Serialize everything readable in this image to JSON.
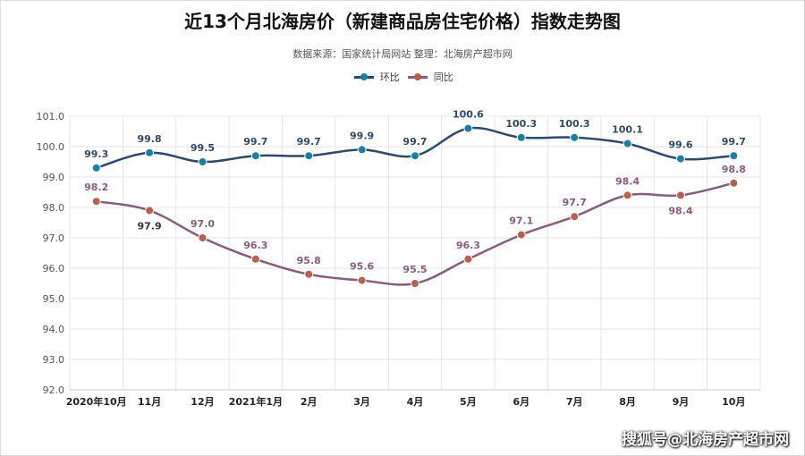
{
  "title": "近13个月北海房价（新建商品房住宅价格）指数走势图",
  "subtitle": "数据来源：国家统计局网站   整理：北海房产超市网",
  "footer": "搜狐号@北海房产超市网",
  "chart_data": {
    "type": "line",
    "categories": [
      "2020年10月",
      "11月",
      "12月",
      "2021年1月",
      "2月",
      "3月",
      "4月",
      "5月",
      "6月",
      "7月",
      "8月",
      "9月",
      "10月"
    ],
    "ylim": [
      92,
      101
    ],
    "yticks": [
      "92.0",
      "93.0",
      "94.0",
      "95.0",
      "96.0",
      "97.0",
      "98.0",
      "99.0",
      "100.0",
      "101.0"
    ],
    "grid": true,
    "legend_position": "top",
    "series": [
      {
        "name": "环比",
        "color": "#2e4a6b",
        "marker": "#1b7ea6",
        "values": [
          99.3,
          99.8,
          99.5,
          99.7,
          99.7,
          99.9,
          99.7,
          100.6,
          100.3,
          100.3,
          100.1,
          99.6,
          99.7
        ]
      },
      {
        "name": "同比",
        "color": "#8a5c7c",
        "marker": "#b5614b",
        "values": [
          98.2,
          97.9,
          97.0,
          96.3,
          95.8,
          95.6,
          95.5,
          96.3,
          97.1,
          97.7,
          98.4,
          98.4,
          98.8
        ]
      }
    ]
  }
}
